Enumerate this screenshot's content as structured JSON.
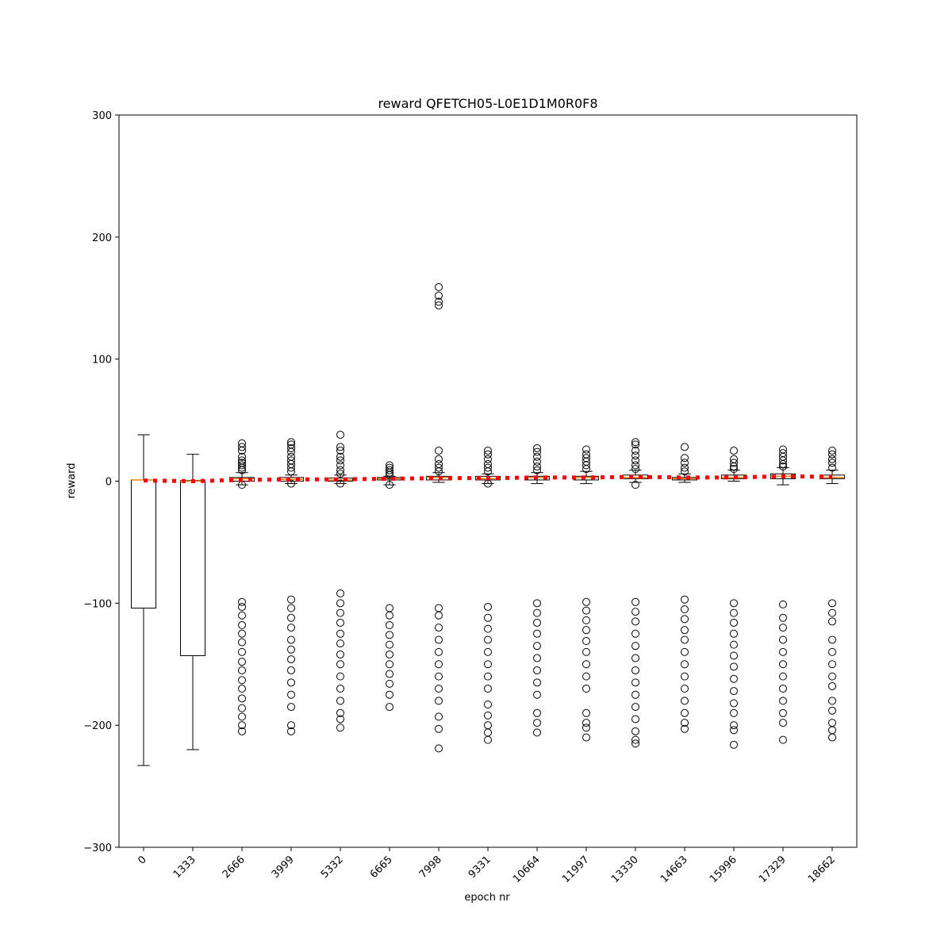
{
  "chart_data": {
    "type": "box",
    "title": "reward QFETCH05-L0E1D1M0R0F8",
    "xlabel": "epoch nr",
    "ylabel": "reward",
    "categories": [
      "0",
      "1333",
      "2666",
      "3999",
      "5332",
      "6665",
      "7998",
      "9331",
      "10664",
      "11997",
      "13330",
      "14663",
      "15996",
      "17329",
      "18662"
    ],
    "whislo": [
      -233,
      -220,
      -3,
      -2,
      -2,
      -3,
      -1,
      -2,
      -2,
      -2,
      -1,
      -1,
      0,
      -3,
      -2
    ],
    "q1": [
      -104,
      -143,
      0,
      0,
      0,
      1,
      1,
      1,
      1,
      1,
      2,
      1,
      2,
      2,
      2
    ],
    "median": [
      1,
      0,
      2,
      1.5,
      1,
      2,
      3,
      2,
      3,
      3,
      3,
      2,
      3,
      4,
      3
    ],
    "q3": [
      1,
      0.5,
      3,
      3,
      2.5,
      3,
      4,
      4,
      4,
      4,
      5,
      3,
      5,
      6,
      5
    ],
    "whishi": [
      38,
      22,
      7,
      5,
      5,
      4,
      7,
      6,
      7,
      8,
      9,
      6,
      9,
      11,
      9
    ],
    "fliers": [
      [],
      [],
      [
        31,
        28,
        25,
        20,
        17,
        15,
        13,
        11,
        9,
        -3,
        -99,
        -103,
        -110,
        -118,
        -125,
        -132,
        -140,
        -148,
        -155,
        -163,
        -170,
        -178,
        -186,
        -193,
        -200,
        -205
      ],
      [
        32,
        30,
        27,
        24,
        20,
        17,
        14,
        11,
        8,
        -2,
        -97,
        -104,
        -112,
        -120,
        -130,
        -138,
        -146,
        -155,
        -165,
        -175,
        -185,
        -200,
        -205
      ],
      [
        38,
        28,
        25,
        20,
        17,
        13,
        9,
        6,
        -2,
        -92,
        -100,
        -108,
        -116,
        -125,
        -133,
        -142,
        -150,
        -160,
        -170,
        -180,
        -190,
        -195,
        -202
      ],
      [
        13,
        11,
        9,
        7,
        5,
        -3,
        -104,
        -110,
        -118,
        -126,
        -134,
        -142,
        -150,
        -158,
        -166,
        -175,
        -185
      ],
      [
        159,
        152,
        147,
        144,
        25,
        18,
        14,
        11,
        8,
        -104,
        -110,
        -120,
        -130,
        -140,
        -150,
        -160,
        -170,
        -180,
        -193,
        -203,
        -219
      ],
      [
        25,
        22,
        18,
        14,
        11,
        8,
        -2,
        -103,
        -112,
        -121,
        -130,
        -140,
        -150,
        -160,
        -170,
        -183,
        -192,
        -200,
        -206,
        -212
      ],
      [
        27,
        24,
        20,
        16,
        12,
        9,
        -100,
        -108,
        -116,
        -125,
        -135,
        -145,
        -155,
        -165,
        -175,
        -190,
        -198,
        -206
      ],
      [
        26,
        22,
        19,
        16,
        13,
        10,
        -99,
        -106,
        -114,
        -122,
        -131,
        -140,
        -150,
        -160,
        -170,
        -190,
        -198,
        -202,
        -210
      ],
      [
        32,
        30,
        25,
        21,
        17,
        13,
        10,
        -3,
        -99,
        -107,
        -115,
        -125,
        -135,
        -145,
        -155,
        -165,
        -175,
        -185,
        -195,
        -205,
        -212,
        -215
      ],
      [
        28,
        19,
        15,
        11,
        8,
        -97,
        -105,
        -113,
        -122,
        -130,
        -140,
        -150,
        -160,
        -170,
        -180,
        -190,
        -198,
        -203
      ],
      [
        25,
        18,
        15,
        12,
        10,
        -100,
        -108,
        -116,
        -125,
        -134,
        -143,
        -152,
        -162,
        -172,
        -182,
        -190,
        -200,
        -204,
        -216
      ],
      [
        26,
        23,
        20,
        17,
        14,
        12,
        -101,
        -112,
        -120,
        -130,
        -140,
        -150,
        -160,
        -170,
        -180,
        -190,
        -198,
        -212
      ],
      [
        25,
        22,
        18,
        15,
        11,
        -100,
        -108,
        -115,
        -130,
        -140,
        -150,
        -160,
        -168,
        -180,
        -188,
        -198,
        -204,
        -210
      ]
    ],
    "means": [
      0.5,
      0,
      1,
      1.5,
      1.5,
      2,
      2.5,
      2.5,
      3,
      3,
      3.5,
      3,
      3,
      4,
      3.5
    ],
    "box_color": "#000000",
    "median_color": "#ff7f0e",
    "mean_color": "#ff0000",
    "ylim": [
      -300,
      300
    ],
    "yticks": [
      {
        "value": -300,
        "label": "−300"
      },
      {
        "value": -200,
        "label": "−200"
      },
      {
        "value": -100,
        "label": "−100"
      },
      0,
      100,
      200,
      300
    ]
  }
}
